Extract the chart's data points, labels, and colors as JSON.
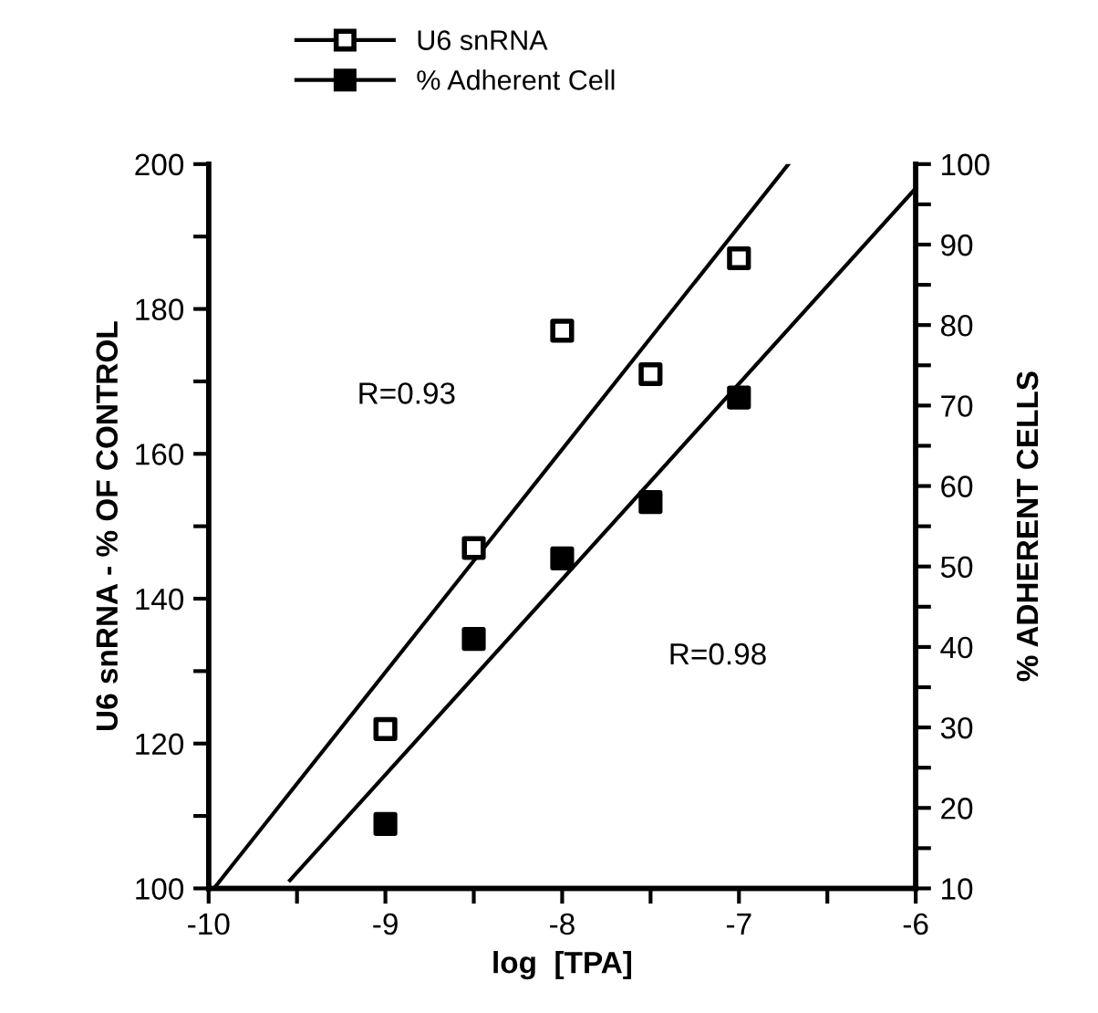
{
  "chart_data": {
    "type": "scatter",
    "xlabel": "log  [TPA]",
    "ylabel": "U6 snRNA - % OF CONTROL",
    "y2label": "% ADHERENT CELLS",
    "x": [
      -9,
      -8.5,
      -8,
      -7.5,
      -7
    ],
    "series": [
      {
        "name": "U6 snRNA",
        "color": "#000000",
        "marker": "square",
        "values": [
          122,
          147,
          177,
          171,
          187
        ]
      },
      {
        "name": "% Adherent Cell",
        "color": "#000000",
        "marker": "square",
        "axis": "y2",
        "values": [
          18,
          41,
          51,
          58,
          71
        ]
      },
      {
        "type": "line",
        "color": "#000000",
        "x": [
          -9.97,
          -6.72
        ],
        "values": [
          100,
          200
        ]
      },
      {
        "type": "line",
        "color": "#000000",
        "axis": "y2",
        "x": [
          -9.54,
          -6
        ],
        "values": [
          11,
          97
        ]
      }
    ],
    "xlim": [
      -10,
      -6
    ],
    "xticks": [
      {
        "value": -10,
        "label": "-10"
      },
      {
        "value": -9.5,
        "label": null
      },
      {
        "value": -9,
        "label": "-9"
      },
      {
        "value": -8.5,
        "label": null
      },
      {
        "value": -8,
        "label": "-8"
      },
      {
        "value": -7.5,
        "label": null
      },
      {
        "value": -7,
        "label": "-7"
      },
      {
        "value": -6.5,
        "label": null
      },
      {
        "value": -6,
        "label": "-6"
      }
    ],
    "ylim": [
      100,
      200
    ],
    "yticks": [
      100,
      {
        "value": 110,
        "label": null
      },
      120,
      {
        "value": 130,
        "label": null
      },
      140,
      {
        "value": 150,
        "label": null
      },
      160,
      {
        "value": 170,
        "label": null
      },
      180,
      {
        "value": 190,
        "label": null
      },
      200
    ],
    "y2lim": [
      10,
      100
    ],
    "y2ticks": [
      10,
      {
        "value": 15,
        "label": null
      },
      20,
      {
        "value": 25,
        "label": null
      },
      30,
      {
        "value": 35,
        "label": null
      },
      40,
      {
        "value": 45,
        "label": null
      },
      50,
      {
        "value": 55,
        "label": null
      },
      60,
      {
        "value": 65,
        "label": null
      },
      70,
      {
        "value": 75,
        "label": null
      },
      80,
      {
        "value": 85,
        "label": null
      },
      90,
      {
        "value": 95,
        "label": null
      },
      100
    ],
    "annotations": [
      "R=0.93",
      "R=0.98"
    ],
    "legend": "top",
    "grid": false
  }
}
